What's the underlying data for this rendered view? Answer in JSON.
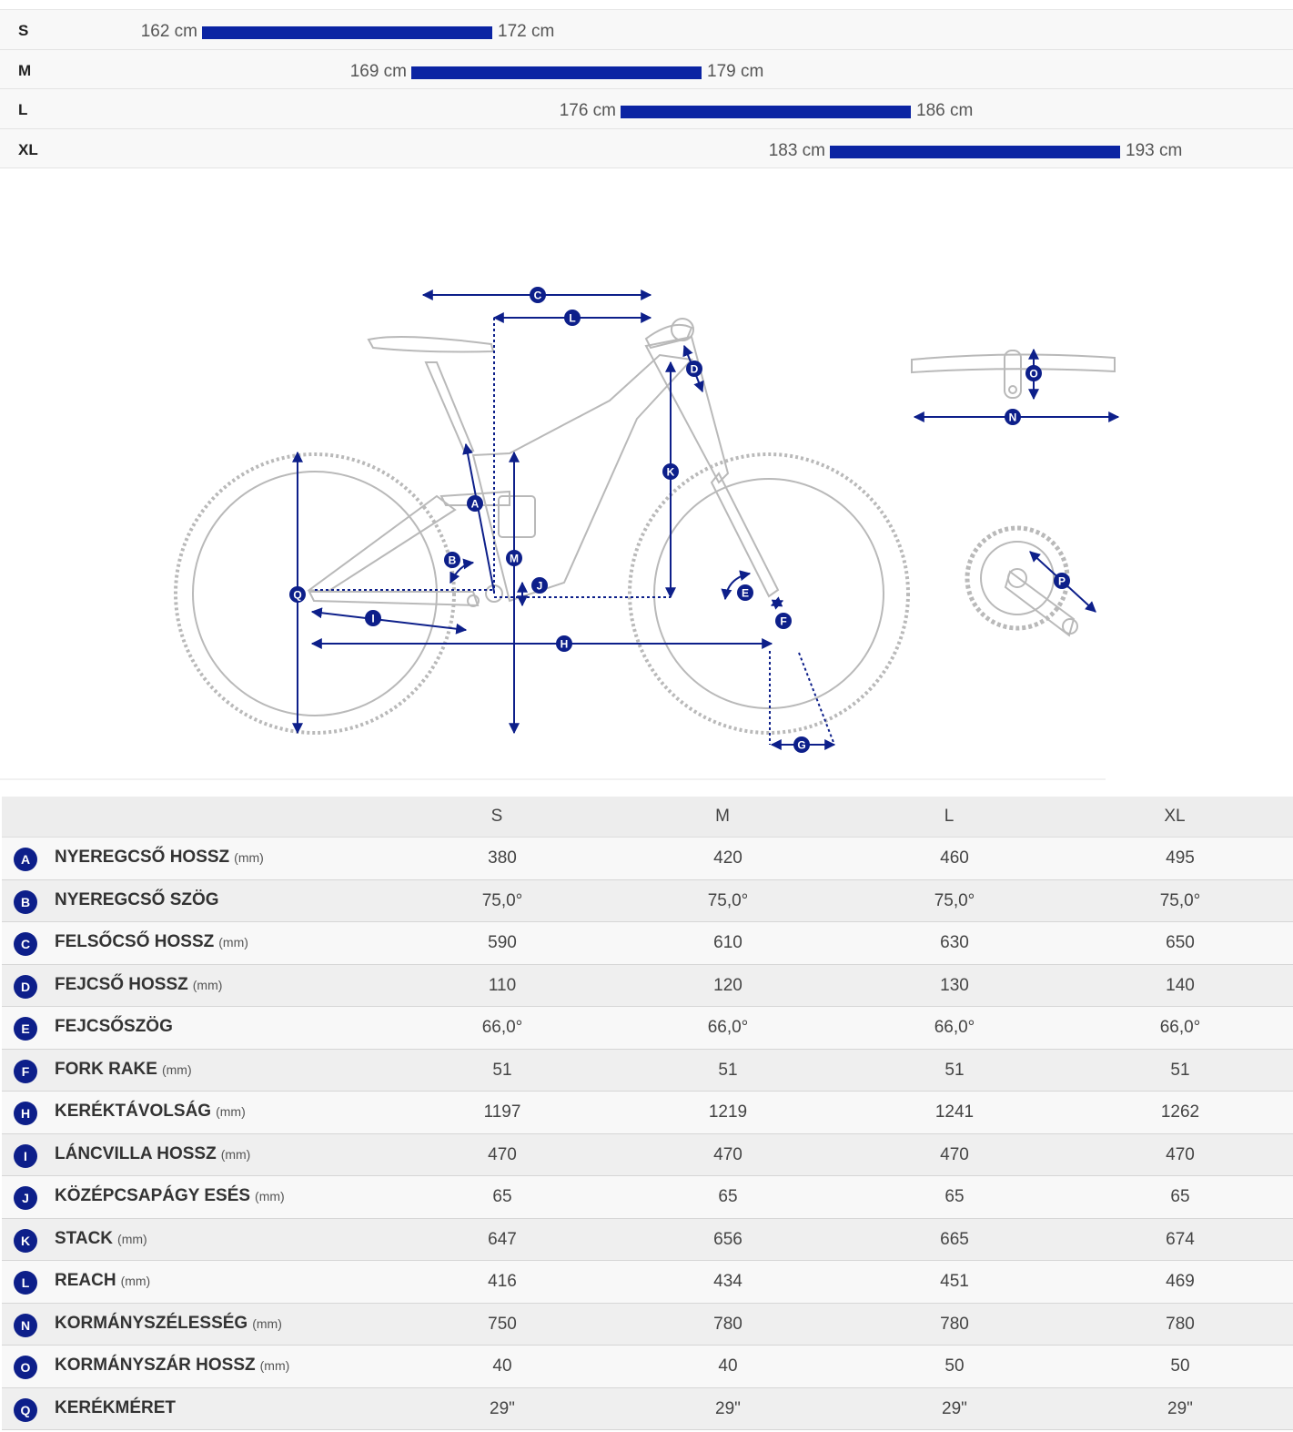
{
  "size_ranges": [
    {
      "size": "S",
      "min": "162 cm",
      "max": "172 cm"
    },
    {
      "size": "M",
      "min": "169 cm",
      "max": "179 cm"
    },
    {
      "size": "L",
      "min": "176 cm",
      "max": "186 cm"
    },
    {
      "size": "XL",
      "min": "183 cm",
      "max": "193 cm"
    }
  ],
  "diagram_markers": [
    "A",
    "B",
    "C",
    "D",
    "E",
    "F",
    "G",
    "H",
    "I",
    "J",
    "K",
    "L",
    "M",
    "N",
    "O",
    "P",
    "Q"
  ],
  "colors": {
    "accent": "#0b24a3",
    "badge": "#0d1f8a",
    "bike_outline": "#b9b9b9"
  },
  "table": {
    "headers": [
      "S",
      "M",
      "L",
      "XL"
    ],
    "rows": [
      {
        "badge": "A",
        "label": "NYEREGCSŐ HOSSZ",
        "unit": "(mm)",
        "values": [
          "380",
          "420",
          "460",
          "495"
        ]
      },
      {
        "badge": "B",
        "label": "NYEREGCSŐ SZÖG",
        "unit": "",
        "values": [
          "75,0°",
          "75,0°",
          "75,0°",
          "75,0°"
        ]
      },
      {
        "badge": "C",
        "label": "FELSŐCSŐ HOSSZ",
        "unit": "(mm)",
        "values": [
          "590",
          "610",
          "630",
          "650"
        ]
      },
      {
        "badge": "D",
        "label": "FEJCSŐ HOSSZ",
        "unit": "(mm)",
        "values": [
          "110",
          "120",
          "130",
          "140"
        ]
      },
      {
        "badge": "E",
        "label": "FEJCSŐSZÖG",
        "unit": "",
        "values": [
          "66,0°",
          "66,0°",
          "66,0°",
          "66,0°"
        ]
      },
      {
        "badge": "F",
        "label": "FORK RAKE",
        "unit": "(mm)",
        "values": [
          "51",
          "51",
          "51",
          "51"
        ]
      },
      {
        "badge": "H",
        "label": "KERÉKTÁVOLSÁG",
        "unit": "(mm)",
        "values": [
          "1197",
          "1219",
          "1241",
          "1262"
        ]
      },
      {
        "badge": "I",
        "label": "LÁNCVILLA HOSSZ",
        "unit": "(mm)",
        "values": [
          "470",
          "470",
          "470",
          "470"
        ]
      },
      {
        "badge": "J",
        "label": "KÖZÉPCSAPÁGY ESÉS",
        "unit": "(mm)",
        "values": [
          "65",
          "65",
          "65",
          "65"
        ]
      },
      {
        "badge": "K",
        "label": "STACK",
        "unit": "(mm)",
        "values": [
          "647",
          "656",
          "665",
          "674"
        ]
      },
      {
        "badge": "L",
        "label": "REACH",
        "unit": "(mm)",
        "values": [
          "416",
          "434",
          "451",
          "469"
        ]
      },
      {
        "badge": "N",
        "label": "KORMÁNYSZÉLESSÉG",
        "unit": "(mm)",
        "values": [
          "750",
          "780",
          "780",
          "780"
        ]
      },
      {
        "badge": "O",
        "label": "KORMÁNYSZÁR HOSSZ",
        "unit": "(mm)",
        "values": [
          "40",
          "40",
          "50",
          "50"
        ]
      },
      {
        "badge": "Q",
        "label": "KERÉKMÉRET",
        "unit": "",
        "values": [
          "29\"",
          "29\"",
          "29\"",
          "29\""
        ]
      }
    ]
  }
}
